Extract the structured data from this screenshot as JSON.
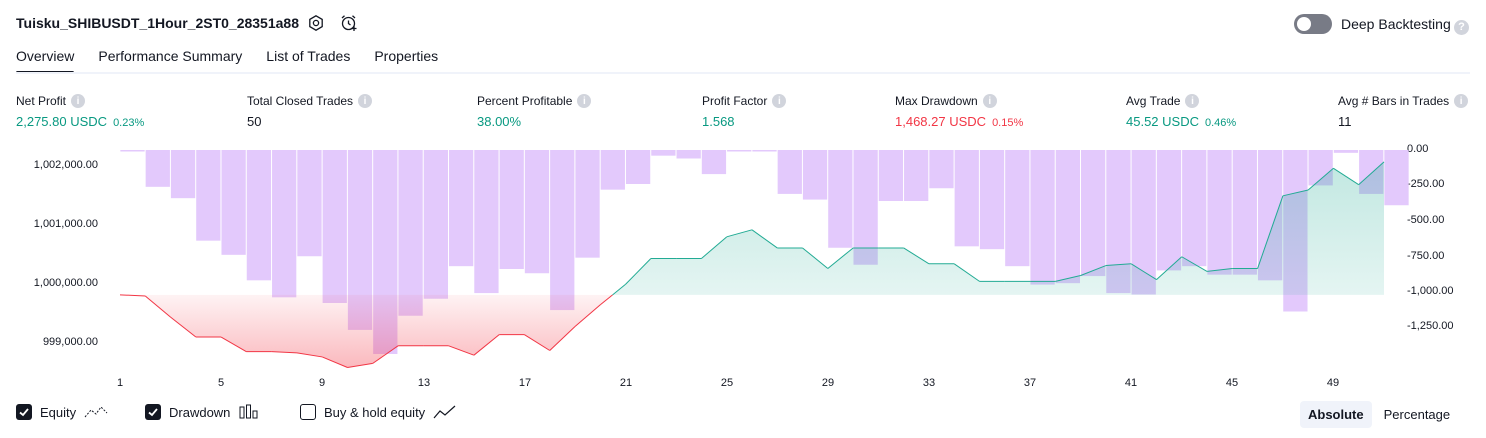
{
  "header": {
    "title": "Tuisku_SHIBUSDT_1Hour_2ST0_28351a88",
    "deep_backtesting_label": "Deep Backtesting",
    "deep_backtesting_enabled": false
  },
  "tabs": [
    {
      "label": "Overview",
      "active": true
    },
    {
      "label": "Performance Summary",
      "active": false
    },
    {
      "label": "List of Trades",
      "active": false
    },
    {
      "label": "Properties",
      "active": false
    }
  ],
  "stats": {
    "net_profit": {
      "label": "Net Profit",
      "value": "2,275.80 USDC",
      "pct": "0.23%"
    },
    "total_closed_trades": {
      "label": "Total Closed Trades",
      "value": "50"
    },
    "percent_profitable": {
      "label": "Percent Profitable",
      "value": "38.00%"
    },
    "profit_factor": {
      "label": "Profit Factor",
      "value": "1.568"
    },
    "max_drawdown": {
      "label": "Max Drawdown",
      "value": "1,468.27 USDC",
      "pct": "0.15%"
    },
    "avg_trade": {
      "label": "Avg Trade",
      "value": "45.52 USDC",
      "pct": "0.46%"
    },
    "avg_bars": {
      "label": "Avg # Bars in Trades",
      "value": "11"
    }
  },
  "colors": {
    "positive": "#089981",
    "negative": "#f23645",
    "drawdown_bar": "#e1c6fc",
    "equity_line_pos": "#22ab94",
    "equity_line_neg": "#f23645"
  },
  "chart_data": {
    "type": "line+bar",
    "left_axis": {
      "ticks": [
        "1,002,000.00",
        "1,001,000.00",
        "1,000,000.00",
        "999,000.00"
      ],
      "ylim": [
        998700,
        1002250
      ]
    },
    "right_axis": {
      "ticks": [
        "0.00",
        "-250.00",
        "-500.00",
        "-750.00",
        "-1,000.00",
        "-1,250.00"
      ],
      "ylim": [
        -1468.27,
        0
      ]
    },
    "x_ticks": [
      "1",
      "5",
      "9",
      "13",
      "17",
      "21",
      "25",
      "29",
      "33",
      "37",
      "41",
      "45",
      "49"
    ],
    "x": [
      1,
      2,
      3,
      4,
      5,
      6,
      7,
      8,
      9,
      10,
      11,
      12,
      13,
      14,
      15,
      16,
      17,
      18,
      19,
      20,
      21,
      22,
      23,
      24,
      25,
      26,
      27,
      28,
      29,
      30,
      31,
      32,
      33,
      34,
      35,
      36,
      37,
      38,
      39,
      40,
      41,
      42,
      43,
      44,
      45,
      46,
      47,
      48,
      49,
      50,
      51
    ],
    "series": [
      {
        "name": "Equity",
        "values": [
          1000000,
          999980,
          999620,
          999280,
          999280,
          999030,
          999030,
          999010,
          998940,
          998760,
          998830,
          999130,
          999130,
          999130,
          998970,
          999320,
          999320,
          999050,
          999460,
          999830,
          1000180,
          1000620,
          1000620,
          1000620,
          1000990,
          1001110,
          1000800,
          1000800,
          1000450,
          1000800,
          1000800,
          1000800,
          1000530,
          1000530,
          1000230,
          1000230,
          1000230,
          1000230,
          1000330,
          1000500,
          1000530,
          1000260,
          1000650,
          1000400,
          1000450,
          1000450,
          1001690,
          1001790,
          1002160,
          1001880,
          1002270
        ]
      },
      {
        "name": "Drawdown",
        "values": [
          0,
          -260,
          -340,
          -640,
          -740,
          -920,
          -1040,
          -750,
          -1080,
          -1270,
          -1440,
          -1170,
          -1050,
          -820,
          -1010,
          -840,
          -870,
          -1130,
          -760,
          -280,
          -240,
          -40,
          -60,
          -170,
          0,
          0,
          -310,
          -350,
          -690,
          -810,
          -360,
          -360,
          -270,
          -680,
          -700,
          -820,
          -950,
          -940,
          -890,
          -1010,
          -1020,
          -850,
          -820,
          -880,
          -880,
          -920,
          -1140,
          -250,
          -20,
          -310,
          -390
        ]
      }
    ],
    "legend": [
      "Equity",
      "Drawdown",
      "Buy & hold equity"
    ]
  },
  "legend": {
    "equity": {
      "label": "Equity",
      "checked": true
    },
    "drawdown": {
      "label": "Drawdown",
      "checked": true
    },
    "buy_hold": {
      "label": "Buy & hold equity",
      "checked": false
    }
  },
  "toggle_group": {
    "absolute": "Absolute",
    "percentage": "Percentage",
    "selected": "Absolute"
  }
}
